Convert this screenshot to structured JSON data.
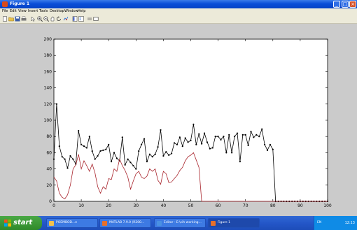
{
  "window": {
    "title": "Figure 1"
  },
  "menu": [
    "File",
    "Edit",
    "View",
    "Insert",
    "Tools",
    "Desktop",
    "Window",
    "Help"
  ],
  "toolbar_icons": [
    "new-icon",
    "open-icon",
    "save-icon",
    "print-icon",
    "pointer-icon",
    "zoom-in-icon",
    "zoom-out-icon",
    "pan-icon",
    "rotate-icon",
    "data-cursor-icon",
    "colorbar-icon",
    "legend-icon",
    "hide-tools-icon",
    "show-tools-icon"
  ],
  "chart_data": {
    "type": "line",
    "xlim": [
      0,
      100
    ],
    "ylim": [
      0,
      200
    ],
    "xticks": [
      "0",
      "10",
      "20",
      "30",
      "40",
      "50",
      "60",
      "70",
      "80",
      "90",
      "100"
    ],
    "yticks": [
      "0",
      "20",
      "40",
      "60",
      "80",
      "100",
      "120",
      "140",
      "160",
      "180",
      "200"
    ],
    "grid": false,
    "series": [
      {
        "color": "#000000",
        "marker": "dot",
        "x": [
          0,
          1,
          2,
          3,
          4,
          5,
          6,
          7,
          8,
          9,
          10,
          11,
          12,
          13,
          14,
          15,
          16,
          17,
          18,
          19,
          20,
          21,
          22,
          23,
          24,
          25,
          26,
          27,
          28,
          29,
          30,
          31,
          32,
          33,
          34,
          35,
          36,
          37,
          38,
          39,
          40,
          41,
          42,
          43,
          44,
          45,
          46,
          47,
          48,
          49,
          50,
          51,
          52,
          53,
          54,
          55,
          56,
          57,
          58,
          59,
          60,
          61,
          62,
          63,
          64,
          65,
          66,
          67,
          68,
          69,
          70,
          71,
          72,
          73,
          74,
          75,
          76,
          77,
          78,
          79,
          80,
          81,
          82,
          83,
          84,
          85,
          86,
          87,
          88,
          89,
          90,
          91,
          92,
          93,
          94,
          95,
          96,
          97,
          98,
          99,
          100
        ],
        "y": [
          52,
          120,
          68,
          55,
          52,
          41,
          56,
          52,
          46,
          87,
          70,
          68,
          66,
          80,
          62,
          52,
          56,
          62,
          63,
          64,
          70,
          49,
          60,
          53,
          50,
          79,
          45,
          52,
          48,
          44,
          40,
          62,
          70,
          77,
          49,
          58,
          55,
          58,
          67,
          88,
          56,
          61,
          57,
          59,
          72,
          70,
          79,
          68,
          78,
          73,
          75,
          95,
          70,
          83,
          71,
          84,
          73,
          65,
          66,
          80,
          80,
          76,
          80,
          60,
          82,
          60,
          80,
          84,
          49,
          82,
          82,
          69,
          86,
          79,
          82,
          80,
          89,
          70,
          63,
          70,
          64,
          0,
          0,
          0,
          0,
          0,
          0,
          0,
          0,
          0,
          0,
          0,
          0,
          0,
          0,
          0,
          0,
          0,
          0,
          0,
          0
        ]
      },
      {
        "color": "#a8242c",
        "marker": "none",
        "x": [
          0,
          1,
          2,
          3,
          4,
          5,
          6,
          7,
          8,
          9,
          10,
          11,
          12,
          13,
          14,
          15,
          16,
          17,
          18,
          19,
          20,
          21,
          22,
          23,
          24,
          25,
          26,
          27,
          28,
          29,
          30,
          31,
          32,
          33,
          34,
          35,
          36,
          37,
          38,
          39,
          40,
          41,
          42,
          43,
          44,
          45,
          46,
          47,
          48,
          49,
          50,
          51,
          52,
          53,
          54,
          55,
          56,
          57,
          58,
          59,
          60,
          61,
          62,
          63,
          64,
          65,
          66,
          67,
          68,
          69,
          70,
          71,
          72,
          73,
          74,
          75,
          76,
          77,
          78,
          79,
          80,
          81,
          82,
          83,
          84,
          85,
          86,
          87,
          88,
          89,
          90,
          91,
          92,
          93,
          94,
          95,
          96,
          97,
          98,
          99,
          100
        ],
        "y": [
          30,
          25,
          10,
          5,
          3,
          8,
          20,
          40,
          45,
          58,
          40,
          50,
          44,
          37,
          46,
          35,
          18,
          10,
          18,
          15,
          28,
          27,
          40,
          37,
          52,
          44,
          38,
          30,
          15,
          25,
          34,
          37,
          30,
          28,
          31,
          40,
          37,
          40,
          26,
          21,
          37,
          34,
          23,
          24,
          28,
          32,
          38,
          42,
          50,
          55,
          57,
          60,
          51,
          42,
          0,
          0,
          0,
          0,
          0,
          0,
          0,
          0,
          0,
          0,
          0,
          0,
          0,
          0,
          0,
          0,
          0,
          0,
          0,
          0,
          0,
          0,
          0,
          0,
          0,
          0,
          0,
          0,
          0,
          0,
          0,
          0,
          0,
          0,
          0,
          0,
          0,
          0,
          0,
          0,
          0,
          0,
          0,
          0,
          0,
          0,
          0
        ]
      }
    ]
  },
  "taskbar": {
    "start_label": "start",
    "tasks": [
      {
        "label": "POEMBOD...e",
        "icon_color": "#f2c14e",
        "active": false
      },
      {
        "label": "MATLAB 7.9.0 (R200...",
        "icon_color": "#e8702a",
        "active": false
      },
      {
        "label": "Editor - E:\\cih working...",
        "icon_color": "#4a90e2",
        "active": false
      },
      {
        "label": "Figure 1",
        "icon_color": "#e8702a",
        "active": true
      }
    ],
    "tray_text": "EN",
    "clock": "12:13"
  }
}
